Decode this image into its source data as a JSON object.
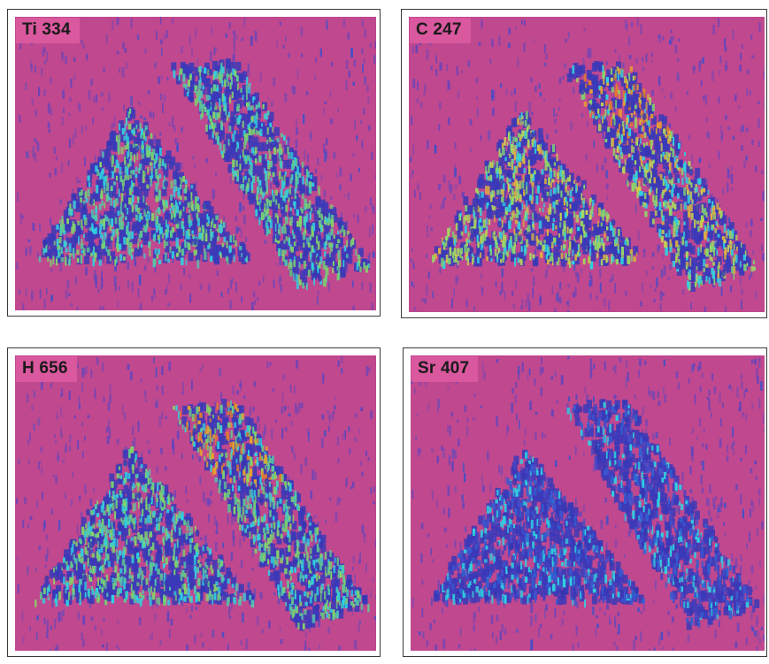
{
  "panels": [
    {
      "id": "ti",
      "label": "Ti 334",
      "intensity": "medium",
      "hot_region": "none"
    },
    {
      "id": "c",
      "label": "C 247",
      "intensity": "high",
      "hot_region": "right-top"
    },
    {
      "id": "h",
      "label": "H 656",
      "intensity": "medium",
      "hot_region": "right-top"
    },
    {
      "id": "sr",
      "label": "Sr 407",
      "intensity": "low",
      "hot_region": "none"
    }
  ],
  "colors": {
    "background_magenta": "#c0488f",
    "streak_blue": "#4a4ac8",
    "edge_cyan": "#30d0e0",
    "fill_green": "#7ad070",
    "hot_orange": "#e8a030"
  }
}
